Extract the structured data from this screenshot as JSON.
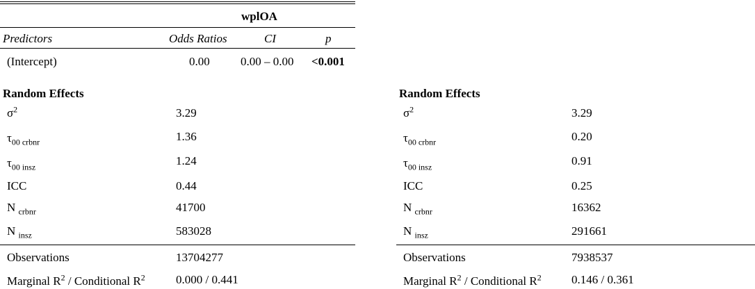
{
  "left_table": {
    "dependent_variable": "wplOA",
    "headers": {
      "predictors": "Predictors",
      "odds_ratios": "Odds Ratios",
      "ci": "CI",
      "p": "p"
    },
    "intercept": {
      "label": "(Intercept)",
      "odds_ratio": "0.00",
      "ci": "0.00 – 0.00",
      "p": "<0.001"
    },
    "random_effects_title": "Random Effects",
    "sigma2": "3.29",
    "tau00_crbnr": "1.36",
    "tau00_insz": "1.24",
    "icc": "0.44",
    "n_crbnr": "41700",
    "n_insz": "583028",
    "observations": "13704277",
    "r2": "0.000 / 0.441"
  },
  "right_table": {
    "random_effects_title": "Random Effects",
    "sigma2": "3.29",
    "tau00_crbnr": "0.20",
    "tau00_insz": "0.91",
    "icc": "0.25",
    "n_crbnr": "16362",
    "n_insz": "291661",
    "observations": "7938537",
    "r2": "0.146 / 0.361"
  },
  "labels": {
    "sigma": "σ",
    "sigma_sup": "2",
    "tau": "τ",
    "tau_sub_crbnr": "00 crbnr",
    "tau_sub_insz": "00 insz",
    "icc": "ICC",
    "n": "N",
    "n_sub_crbnr": "crbnr",
    "n_sub_insz": "insz",
    "observations": "Observations",
    "marginal": "Marginal R",
    "r_sup": "2",
    "conditional": " / Conditional R"
  }
}
